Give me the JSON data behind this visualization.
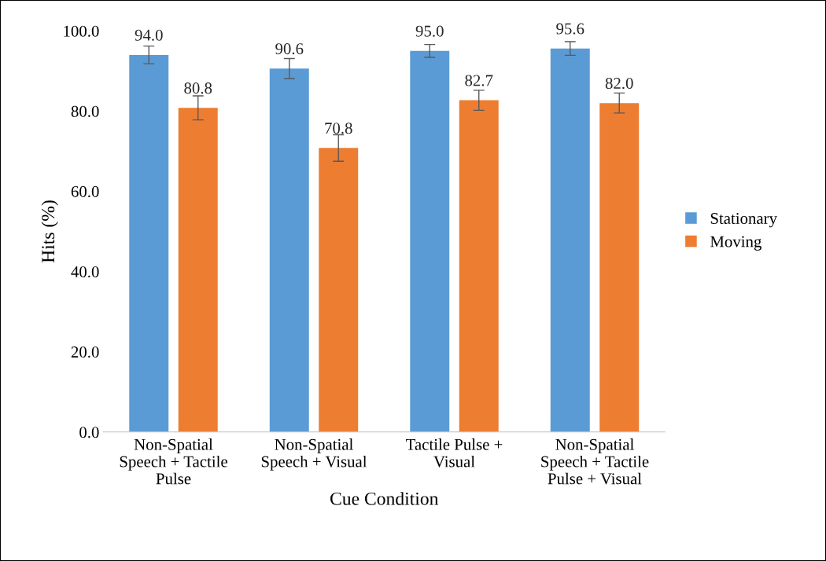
{
  "chart_data": {
    "type": "bar",
    "xlabel": "Cue Condition",
    "ylabel": "Hits (%)",
    "categories": [
      "Non-Spatial\nSpeech + Tactile\nPulse",
      "Non-Spatial\nSpeech + Visual",
      "Tactile Pulse +\nVisual",
      "Non-Spatial\nSpeech + Tactile\nPulse + Visual"
    ],
    "series": [
      {
        "name": "Stationary",
        "color": "#5b9bd5",
        "values": [
          94.0,
          90.6,
          95.0,
          95.6
        ],
        "value_labels": [
          "94.0",
          "90.6",
          "95.0",
          "95.6"
        ],
        "errors": [
          2.2,
          2.5,
          1.6,
          1.7
        ]
      },
      {
        "name": "Moving",
        "color": "#ed7d31",
        "values": [
          80.8,
          70.8,
          82.7,
          82.0
        ],
        "value_labels": [
          "80.8",
          "70.8",
          "82.7",
          "82.0"
        ],
        "errors": [
          3.0,
          3.3,
          2.5,
          2.5
        ]
      }
    ],
    "ylim": [
      0,
      100
    ],
    "yticks": [
      {
        "value": 0,
        "label": "0.0"
      },
      {
        "value": 20,
        "label": "20.0"
      },
      {
        "value": 40,
        "label": "40.0"
      },
      {
        "value": 60,
        "label": "60.0"
      },
      {
        "value": 80,
        "label": "80.0"
      },
      {
        "value": 100,
        "label": "100.0"
      }
    ],
    "grid": false,
    "legend": "right"
  }
}
